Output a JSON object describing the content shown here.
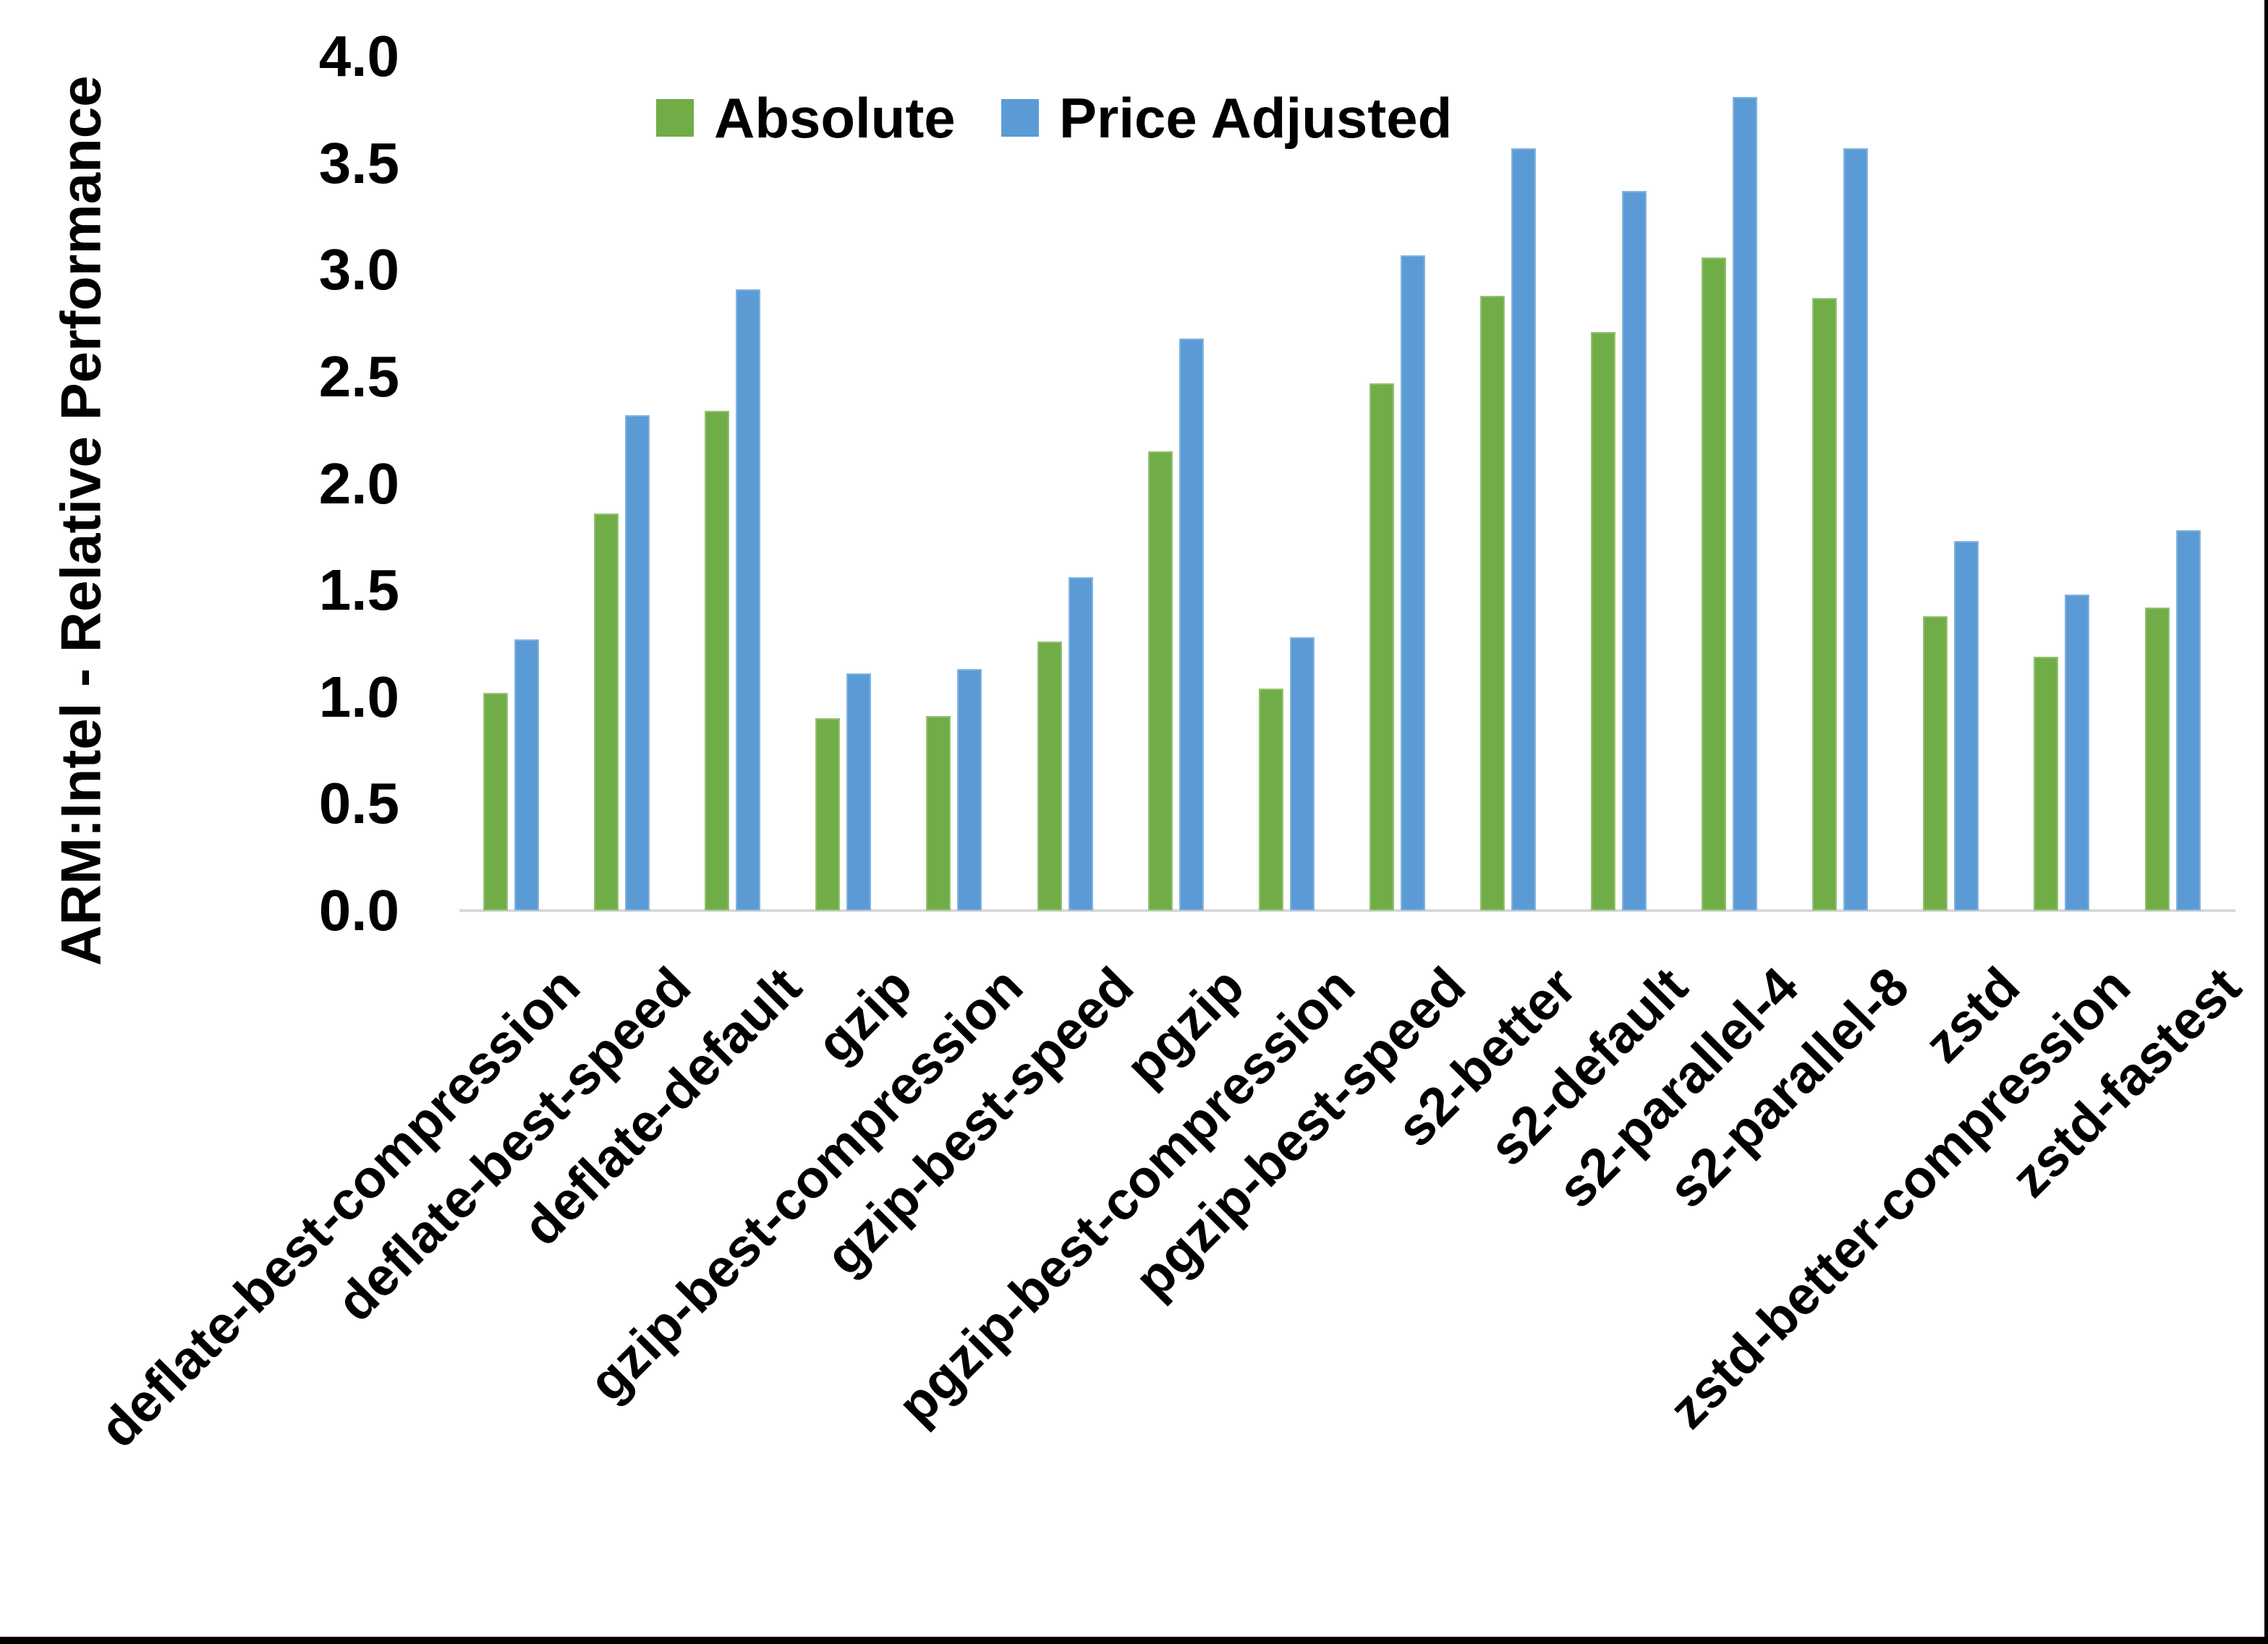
{
  "y_axis": {
    "title": "ARM:Intel - Relative Performance",
    "ticks": [
      "0.0",
      "0.5",
      "1.0",
      "1.5",
      "2.0",
      "2.5",
      "3.0",
      "3.5",
      "4.0"
    ]
  },
  "legend": [
    {
      "label": "Absolute",
      "color": "#70AD47"
    },
    {
      "label": "Price Adjusted",
      "color": "#5B9BD5"
    }
  ],
  "chart_data": {
    "type": "bar",
    "title": "",
    "xlabel": "",
    "ylabel": "ARM:Intel - Relative Performance",
    "ylim": [
      0,
      4
    ],
    "ytick_step": 0.5,
    "grid": false,
    "legend_position": "top",
    "categories": [
      "deflate-best-compression",
      "deflate-best-speed",
      "deflate-default",
      "gzip",
      "gzip-best-compression",
      "gzip-best-speed",
      "pgzip",
      "pgzip-best-compression",
      "pgzip-best-speed",
      "s2-better",
      "s2-default",
      "s2-parallel-4",
      "s2-parallel-8",
      "zstd",
      "zstd-better-compression",
      "zstd-fastest"
    ],
    "series": [
      {
        "name": "Absolute",
        "color": "#70AD47",
        "values": [
          1.02,
          1.86,
          2.34,
          0.9,
          0.91,
          1.26,
          2.15,
          1.04,
          2.47,
          2.88,
          2.71,
          3.06,
          2.87,
          1.38,
          1.19,
          1.42
        ]
      },
      {
        "name": "Price Adjusted",
        "color": "#5B9BD5",
        "values": [
          1.27,
          2.32,
          2.91,
          1.11,
          1.13,
          1.56,
          2.68,
          1.28,
          3.07,
          3.57,
          3.37,
          3.81,
          3.57,
          1.73,
          1.48,
          1.78
        ]
      }
    ],
    "axis_color": "#D9D9D9",
    "text_color": "#000000"
  }
}
